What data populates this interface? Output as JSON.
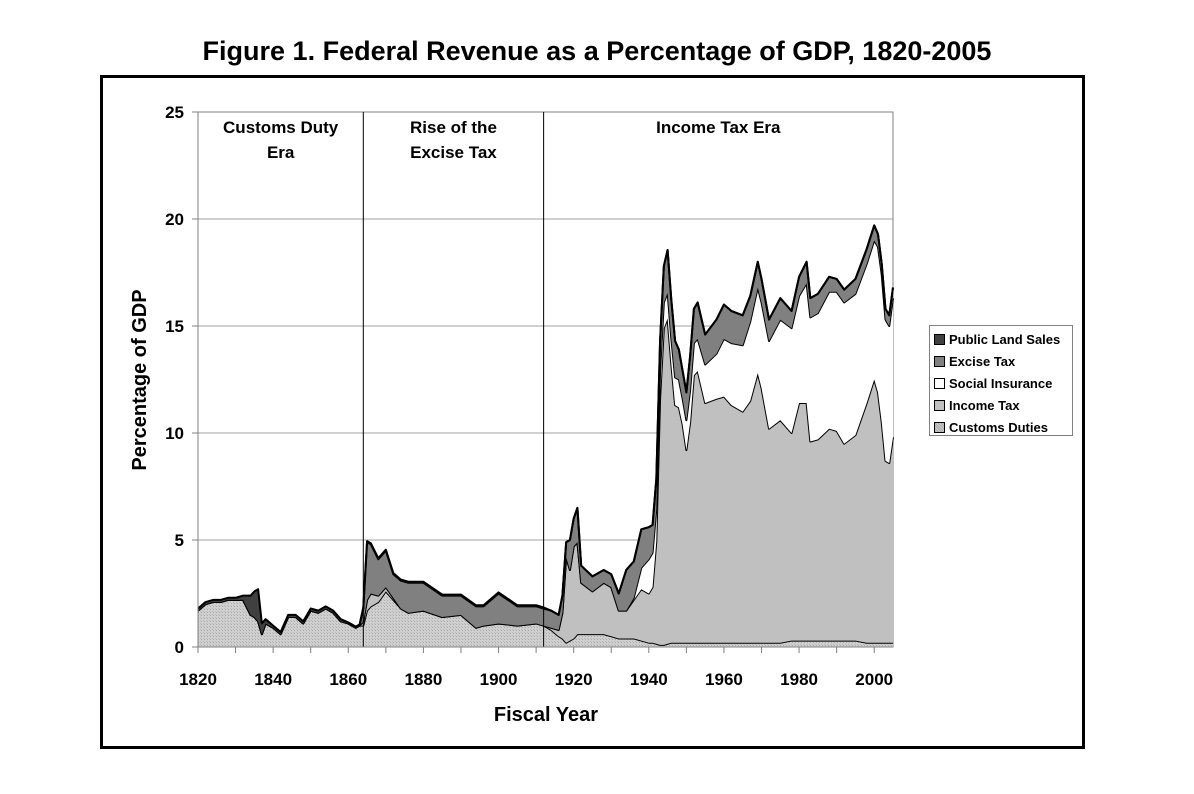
{
  "chart_data": {
    "type": "area",
    "stacked": true,
    "title": "Figure 1. Federal Revenue as a Percentage of GDP, 1820-2005",
    "xlabel": "Fiscal Year",
    "ylabel": "Percentage of GDP",
    "xlim": [
      1820,
      2005
    ],
    "ylim": [
      0,
      25
    ],
    "x_ticks": [
      "1820",
      "1840",
      "1860",
      "1880",
      "1900",
      "1920",
      "1940",
      "1960",
      "1980",
      "2000"
    ],
    "y_ticks": [
      "0",
      "5",
      "10",
      "15",
      "20",
      "25"
    ],
    "grid": "horizontal",
    "legend_position": "right",
    "eras": [
      {
        "label_line1": "Customs Duty",
        "label_line2": "Era",
        "start": 1820,
        "end": 1864
      },
      {
        "label_line1": "Rise of the",
        "label_line2": "Excise Tax",
        "start": 1864,
        "end": 1912
      },
      {
        "label_line1": "Income Tax Era",
        "label_line2": "",
        "start": 1912,
        "end": 2005
      }
    ],
    "x": [
      1820,
      1822,
      1824,
      1826,
      1828,
      1830,
      1832,
      1834,
      1835,
      1836,
      1837,
      1838,
      1840,
      1842,
      1844,
      1846,
      1848,
      1850,
      1852,
      1854,
      1856,
      1858,
      1860,
      1862,
      1863,
      1864,
      1865,
      1866,
      1868,
      1870,
      1872,
      1874,
      1876,
      1880,
      1885,
      1890,
      1894,
      1896,
      1900,
      1905,
      1910,
      1912,
      1914,
      1916,
      1917,
      1918,
      1919,
      1920,
      1921,
      1922,
      1925,
      1928,
      1930,
      1932,
      1934,
      1936,
      1938,
      1940,
      1941,
      1942,
      1943,
      1944,
      1945,
      1946,
      1947,
      1948,
      1949,
      1950,
      1951,
      1952,
      1953,
      1955,
      1958,
      1960,
      1962,
      1965,
      1967,
      1969,
      1970,
      1972,
      1975,
      1978,
      1980,
      1982,
      1983,
      1985,
      1988,
      1990,
      1992,
      1995,
      1998,
      2000,
      2001,
      2002,
      2003,
      2004,
      2005
    ],
    "series": [
      {
        "name": "Customs Duties",
        "color": "#c8c8c8",
        "values": [
          1.7,
          2.0,
          2.1,
          2.1,
          2.2,
          2.2,
          2.2,
          1.5,
          1.4,
          1.2,
          0.6,
          1.1,
          0.9,
          0.6,
          1.4,
          1.4,
          1.1,
          1.7,
          1.6,
          1.8,
          1.6,
          1.2,
          1.1,
          0.9,
          1.0,
          1.0,
          1.7,
          1.9,
          2.1,
          2.6,
          2.2,
          1.8,
          1.6,
          1.7,
          1.4,
          1.5,
          0.9,
          1.0,
          1.1,
          1.0,
          1.1,
          1.0,
          0.8,
          0.5,
          0.4,
          0.2,
          0.3,
          0.4,
          0.6,
          0.6,
          0.6,
          0.6,
          0.5,
          0.4,
          0.4,
          0.4,
          0.3,
          0.2,
          0.2,
          0.15,
          0.1,
          0.1,
          0.15,
          0.2,
          0.2,
          0.2,
          0.2,
          0.2,
          0.2,
          0.2,
          0.2,
          0.2,
          0.2,
          0.2,
          0.2,
          0.2,
          0.2,
          0.2,
          0.2,
          0.2,
          0.2,
          0.3,
          0.3,
          0.3,
          0.3,
          0.3,
          0.3,
          0.3,
          0.3,
          0.3,
          0.2,
          0.2,
          0.2,
          0.2,
          0.2,
          0.2,
          0.2
        ]
      },
      {
        "name": "Income Tax",
        "color": "#c0c0c0",
        "values": [
          0,
          0,
          0,
          0,
          0,
          0,
          0,
          0,
          0,
          0,
          0,
          0,
          0,
          0,
          0,
          0,
          0,
          0,
          0,
          0,
          0,
          0,
          0,
          0,
          0,
          0.2,
          0.5,
          0.6,
          0.3,
          0.2,
          0.1,
          0,
          0,
          0,
          0,
          0,
          0,
          0,
          0,
          0,
          0,
          0,
          0.1,
          0.3,
          1.2,
          4.0,
          3.3,
          4.3,
          4.3,
          2.4,
          2.0,
          2.4,
          2.3,
          1.3,
          1.3,
          1.8,
          2.4,
          2.3,
          2.6,
          4.8,
          11.5,
          14.8,
          15.2,
          13.0,
          11.1,
          11.0,
          10.2,
          9.0,
          10.3,
          12.5,
          12.7,
          11.2,
          11.4,
          11.5,
          11.1,
          10.8,
          11.3,
          12.6,
          11.9,
          10.0,
          10.4,
          9.7,
          11.1,
          11.1,
          9.3,
          9.4,
          9.9,
          9.8,
          9.2,
          9.6,
          11.2,
          12.3,
          11.7,
          10.3,
          8.5,
          8.4,
          9.6
        ]
      },
      {
        "name": "Social Insurance",
        "color": "#ffffff",
        "values": [
          0,
          0,
          0,
          0,
          0,
          0,
          0,
          0,
          0,
          0,
          0,
          0,
          0,
          0,
          0,
          0,
          0,
          0,
          0,
          0,
          0,
          0,
          0,
          0,
          0,
          0,
          0,
          0,
          0,
          0,
          0,
          0,
          0,
          0,
          0,
          0,
          0,
          0,
          0,
          0,
          0,
          0,
          0,
          0,
          0,
          0,
          0,
          0,
          0,
          0,
          0,
          0,
          0,
          0,
          0,
          0.1,
          1.0,
          1.6,
          1.6,
          1.5,
          1.3,
          1.2,
          1.2,
          1.2,
          1.3,
          1.3,
          1.2,
          1.4,
          1.5,
          1.5,
          1.5,
          1.8,
          2.1,
          2.7,
          2.9,
          3.1,
          3.7,
          4.0,
          4.0,
          4.1,
          4.7,
          4.9,
          5.0,
          5.6,
          5.8,
          5.9,
          6.4,
          6.5,
          6.6,
          6.6,
          6.5,
          6.5,
          6.8,
          6.9,
          6.6,
          6.4,
          6.5
        ]
      },
      {
        "name": "Excise Tax",
        "color": "#808080",
        "values": [
          0,
          0,
          0,
          0,
          0,
          0,
          0,
          0,
          0,
          0,
          0,
          0,
          0,
          0,
          0,
          0,
          0,
          0,
          0,
          0,
          0,
          0,
          0,
          0,
          0,
          0.6,
          2.7,
          2.3,
          1.7,
          1.7,
          1.1,
          1.3,
          1.4,
          1.3,
          1.0,
          0.9,
          1.0,
          0.9,
          1.4,
          0.9,
          0.8,
          0.8,
          0.8,
          0.7,
          0.8,
          0.7,
          1.4,
          1.3,
          1.6,
          0.8,
          0.7,
          0.6,
          0.6,
          0.8,
          1.9,
          1.7,
          1.8,
          1.5,
          1.3,
          1.4,
          1.4,
          1.7,
          2.0,
          1.8,
          1.7,
          1.4,
          1.3,
          1.3,
          1.6,
          1.6,
          1.7,
          1.4,
          1.6,
          1.6,
          1.5,
          1.4,
          1.2,
          1.2,
          1.1,
          1.0,
          1.0,
          0.8,
          0.9,
          1.0,
          0.9,
          0.9,
          0.7,
          0.6,
          0.6,
          0.7,
          0.7,
          0.7,
          0.6,
          0.5,
          0.5,
          0.5,
          0.5
        ]
      },
      {
        "name": "Public Land Sales",
        "color": "#404040",
        "values": [
          0.1,
          0.1,
          0.1,
          0.1,
          0.1,
          0.1,
          0.2,
          0.9,
          1.2,
          1.5,
          0.5,
          0.2,
          0.1,
          0.1,
          0.1,
          0.1,
          0.1,
          0.1,
          0.1,
          0.1,
          0.1,
          0.1,
          0.05,
          0.05,
          0.05,
          0.05,
          0.05,
          0.05,
          0.05,
          0.05,
          0.05,
          0.05,
          0.05,
          0.05,
          0.05,
          0.05,
          0.05,
          0.05,
          0.05,
          0.05,
          0.05,
          0.05,
          0,
          0,
          0,
          0,
          0,
          0,
          0,
          0,
          0,
          0,
          0,
          0,
          0,
          0,
          0,
          0,
          0,
          0,
          0,
          0,
          0,
          0,
          0,
          0,
          0,
          0,
          0,
          0,
          0,
          0,
          0,
          0,
          0,
          0,
          0,
          0,
          0,
          0,
          0,
          0,
          0,
          0,
          0,
          0,
          0,
          0,
          0,
          0,
          0,
          0,
          0,
          0,
          0,
          0,
          0
        ]
      }
    ]
  }
}
